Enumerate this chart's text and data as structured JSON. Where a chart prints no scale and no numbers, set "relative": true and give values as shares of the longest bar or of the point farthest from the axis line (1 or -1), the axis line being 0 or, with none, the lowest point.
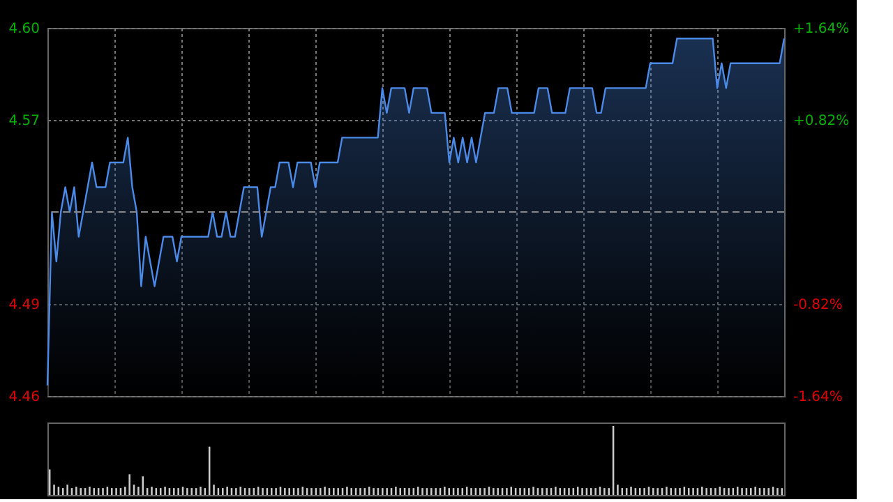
{
  "chart_data": [
    {
      "type": "area",
      "categories": [
        null,
        null,
        null,
        null,
        null,
        null,
        null,
        null,
        null,
        null,
        null,
        null,
        null,
        null,
        null,
        null,
        null,
        null,
        null,
        null,
        null,
        null,
        null,
        null,
        null,
        null,
        null,
        null,
        null,
        null,
        null,
        null,
        null,
        null,
        null,
        null,
        null,
        null,
        null,
        null,
        null,
        null,
        null,
        null,
        null,
        null,
        null,
        null,
        null,
        null,
        null,
        null,
        null,
        null,
        null,
        null,
        null,
        null,
        null,
        null,
        null,
        null,
        null,
        null,
        null,
        null,
        null,
        null,
        null,
        null,
        null,
        null,
        null,
        null,
        null,
        null,
        null,
        null,
        null,
        null,
        null,
        null,
        null,
        null,
        null,
        null,
        null,
        null,
        null,
        null,
        null,
        null,
        null,
        null,
        null,
        null,
        null,
        null,
        null,
        null,
        null,
        null,
        null,
        null,
        null,
        null,
        null,
        null,
        null,
        null,
        null,
        null,
        null,
        null,
        null,
        null,
        null,
        null,
        null,
        null,
        null,
        null,
        null,
        null,
        null,
        null,
        null,
        null,
        null,
        null,
        null,
        null,
        null,
        null,
        null,
        null,
        null,
        null,
        null,
        null,
        null,
        null,
        null,
        null,
        null,
        null,
        null,
        null,
        null,
        null,
        null,
        null,
        null,
        null,
        null,
        null,
        null,
        null,
        null,
        null,
        null,
        null,
        null,
        null,
        null,
        null
      ],
      "series": [
        {
          "color": "#4a8ae8",
          "values": [
            4.46,
            4.53,
            4.51,
            4.53,
            4.54,
            4.53,
            4.54,
            4.52,
            4.53,
            4.54,
            4.55,
            4.54,
            4.54,
            4.54,
            4.55,
            4.55,
            4.55,
            4.55,
            4.56,
            4.54,
            4.53,
            4.5,
            4.52,
            4.51,
            4.5,
            4.51,
            4.52,
            4.52,
            4.52,
            4.51,
            4.52,
            4.52,
            4.52,
            4.52,
            4.52,
            4.52,
            4.52,
            4.53,
            4.52,
            4.52,
            4.53,
            4.52,
            4.52,
            4.53,
            4.54,
            4.54,
            4.54,
            4.54,
            4.52,
            4.53,
            4.54,
            4.54,
            4.55,
            4.55,
            4.55,
            4.54,
            4.55,
            4.55,
            4.55,
            4.55,
            4.54,
            4.55,
            4.55,
            4.55,
            4.55,
            4.55,
            4.56,
            4.56,
            4.56,
            4.56,
            4.56,
            4.56,
            4.56,
            4.56,
            4.56,
            4.58,
            4.57,
            4.58,
            4.58,
            4.58,
            4.58,
            4.57,
            4.58,
            4.58,
            4.58,
            4.58,
            4.57,
            4.57,
            4.57,
            4.57,
            4.55,
            4.56,
            4.55,
            4.56,
            4.55,
            4.56,
            4.55,
            4.56,
            4.57,
            4.57,
            4.57,
            4.58,
            4.58,
            4.58,
            4.57,
            4.57,
            4.57,
            4.57,
            4.57,
            4.57,
            4.58,
            4.58,
            4.58,
            4.57,
            4.57,
            4.57,
            4.57,
            4.58,
            4.58,
            4.58,
            4.58,
            4.58,
            4.58,
            4.57,
            4.57,
            4.58,
            4.58,
            4.58,
            4.58,
            4.58,
            4.58,
            4.58,
            4.58,
            4.58,
            4.58,
            4.59,
            4.59,
            4.59,
            4.59,
            4.59,
            4.59,
            4.6,
            4.6,
            4.6,
            4.6,
            4.6,
            4.6,
            4.6,
            4.6,
            4.6,
            4.58,
            4.59,
            4.58,
            4.59,
            4.59,
            4.59,
            4.59,
            4.59,
            4.59,
            4.59,
            4.59,
            4.59,
            4.59,
            4.59,
            4.59,
            4.6
          ]
        }
      ],
      "ylim": [
        4.4557,
        4.6043
      ],
      "yticks": [
        {
          "value": 4.4557,
          "label": "4.46"
        },
        {
          "value": 4.4928,
          "label": "4.49"
        },
        {
          "value": 4.5672,
          "label": "4.57"
        },
        {
          "value": 4.6043,
          "label": "4.60"
        }
      ],
      "y2lim": [
        -1.64,
        1.64
      ],
      "y2ticks": [
        {
          "value": -1.64,
          "label": "-1.64%"
        },
        {
          "value": -0.82,
          "label": "-0.82%"
        },
        {
          "value": 0.82,
          "label": "+0.82%"
        },
        {
          "value": 1.64,
          "label": "+1.64%"
        }
      ],
      "ref_lines": [
        {
          "axis": "y",
          "value": 4.53,
          "line_style": "dashed",
          "color": "#888888"
        }
      ],
      "grid": true
    },
    {
      "type": "bar",
      "relative": true,
      "color": "#cccccc",
      "categories": [
        null,
        null,
        null,
        null,
        null,
        null,
        null,
        null,
        null,
        null,
        null,
        null,
        null,
        null,
        null,
        null,
        null,
        null,
        null,
        null,
        null,
        null,
        null,
        null,
        null,
        null,
        null,
        null,
        null,
        null,
        null,
        null,
        null,
        null,
        null,
        null,
        null,
        null,
        null,
        null,
        null,
        null,
        null,
        null,
        null,
        null,
        null,
        null,
        null,
        null,
        null,
        null,
        null,
        null,
        null,
        null,
        null,
        null,
        null,
        null,
        null,
        null,
        null,
        null,
        null,
        null,
        null,
        null,
        null,
        null,
        null,
        null,
        null,
        null,
        null,
        null,
        null,
        null,
        null,
        null,
        null,
        null,
        null,
        null,
        null,
        null,
        null,
        null,
        null,
        null,
        null,
        null,
        null,
        null,
        null,
        null,
        null,
        null,
        null,
        null,
        null,
        null,
        null,
        null,
        null,
        null,
        null,
        null,
        null,
        null,
        null,
        null,
        null,
        null,
        null,
        null,
        null,
        null,
        null,
        null,
        null,
        null,
        null,
        null,
        null,
        null,
        null,
        null,
        null,
        null,
        null,
        null,
        null,
        null,
        null,
        null,
        null,
        null,
        null,
        null,
        null,
        null,
        null,
        null,
        null,
        null,
        null,
        null,
        null,
        null,
        null,
        null,
        null,
        null,
        null,
        null,
        null,
        null,
        null,
        null,
        null,
        null,
        null,
        null,
        null,
        null
      ],
      "values": [
        0.37,
        0.15,
        0.12,
        0.1,
        0.15,
        0.1,
        0.12,
        0.1,
        0.1,
        0.12,
        0.1,
        0.1,
        0.1,
        0.12,
        0.1,
        0.1,
        0.1,
        0.12,
        0.3,
        0.15,
        0.12,
        0.27,
        0.1,
        0.12,
        0.1,
        0.1,
        0.12,
        0.1,
        0.1,
        0.1,
        0.12,
        0.1,
        0.1,
        0.1,
        0.12,
        0.1,
        0.7,
        0.15,
        0.1,
        0.1,
        0.12,
        0.1,
        0.1,
        0.12,
        0.1,
        0.1,
        0.1,
        0.12,
        0.1,
        0.1,
        0.1,
        0.1,
        0.12,
        0.1,
        0.1,
        0.1,
        0.1,
        0.12,
        0.1,
        0.1,
        0.1,
        0.1,
        0.12,
        0.1,
        0.1,
        0.1,
        0.1,
        0.12,
        0.1,
        0.1,
        0.1,
        0.1,
        0.12,
        0.1,
        0.1,
        0.1,
        0.1,
        0.1,
        0.12,
        0.1,
        0.1,
        0.1,
        0.1,
        0.12,
        0.1,
        0.1,
        0.1,
        0.1,
        0.1,
        0.12,
        0.1,
        0.1,
        0.1,
        0.1,
        0.12,
        0.1,
        0.1,
        0.1,
        0.1,
        0.12,
        0.1,
        0.1,
        0.1,
        0.1,
        0.12,
        0.1,
        0.1,
        0.1,
        0.1,
        0.12,
        0.1,
        0.1,
        0.1,
        0.1,
        0.12,
        0.1,
        0.1,
        0.1,
        0.1,
        0.12,
        0.1,
        0.1,
        0.1,
        0.1,
        0.12,
        0.1,
        0.1,
        1.0,
        0.15,
        0.1,
        0.1,
        0.12,
        0.1,
        0.1,
        0.1,
        0.12,
        0.1,
        0.1,
        0.1,
        0.12,
        0.1,
        0.1,
        0.1,
        0.12,
        0.1,
        0.1,
        0.1,
        0.12,
        0.1,
        0.1,
        0.1,
        0.12,
        0.1,
        0.1,
        0.1,
        0.12,
        0.1,
        0.1,
        0.1,
        0.12,
        0.1,
        0.1,
        0.1,
        0.12,
        0.1,
        0.1
      ]
    }
  ]
}
